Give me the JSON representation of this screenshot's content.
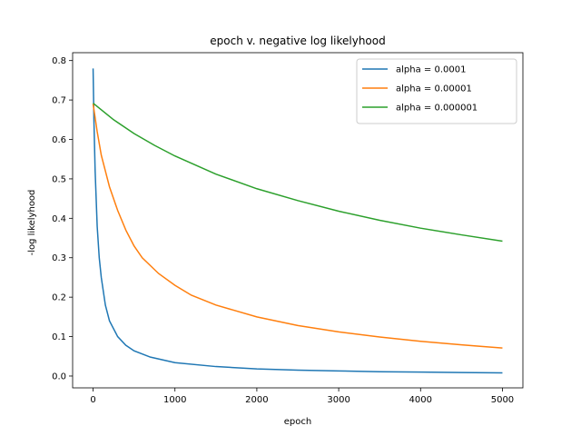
{
  "chart_data": {
    "type": "line",
    "title": "epoch v. negative log likelyhood",
    "xlabel": "epoch",
    "ylabel": "-log likelyhood",
    "xlim": [
      -250,
      5250
    ],
    "ylim": [
      -0.03,
      0.82
    ],
    "xticks": [
      0,
      1000,
      2000,
      3000,
      4000,
      5000
    ],
    "xtick_labels": [
      "0",
      "1000",
      "2000",
      "3000",
      "4000",
      "5000"
    ],
    "yticks": [
      0.0,
      0.1,
      0.2,
      0.3,
      0.4,
      0.5,
      0.6,
      0.7,
      0.8
    ],
    "ytick_labels": [
      "0.0",
      "0.1",
      "0.2",
      "0.3",
      "0.4",
      "0.5",
      "0.6",
      "0.7",
      "0.8"
    ],
    "grid": false,
    "legend_position": "top-right",
    "series": [
      {
        "name": "alpha = 0.0001",
        "color": "#1f77b4",
        "x": [
          0,
          10,
          25,
          50,
          75,
          100,
          150,
          200,
          300,
          400,
          500,
          700,
          1000,
          1500,
          2000,
          2500,
          3000,
          3500,
          4000,
          4500,
          5000
        ],
        "y": [
          0.78,
          0.65,
          0.52,
          0.38,
          0.3,
          0.25,
          0.18,
          0.14,
          0.1,
          0.078,
          0.064,
          0.048,
          0.034,
          0.024,
          0.018,
          0.015,
          0.013,
          0.011,
          0.01,
          0.009,
          0.008
        ]
      },
      {
        "name": "alpha = 0.00001",
        "color": "#ff7f0e",
        "x": [
          0,
          50,
          100,
          150,
          200,
          300,
          400,
          500,
          600,
          800,
          1000,
          1200,
          1500,
          2000,
          2500,
          3000,
          3500,
          4000,
          4500,
          5000
        ],
        "y": [
          0.69,
          0.62,
          0.56,
          0.52,
          0.48,
          0.42,
          0.37,
          0.33,
          0.3,
          0.26,
          0.23,
          0.205,
          0.18,
          0.15,
          0.128,
          0.112,
          0.099,
          0.088,
          0.079,
          0.071
        ]
      },
      {
        "name": "alpha = 0.000001",
        "color": "#2ca02c",
        "x": [
          0,
          250,
          500,
          750,
          1000,
          1500,
          2000,
          2500,
          3000,
          3500,
          4000,
          4500,
          5000
        ],
        "y": [
          0.692,
          0.65,
          0.615,
          0.585,
          0.558,
          0.512,
          0.475,
          0.445,
          0.418,
          0.395,
          0.375,
          0.358,
          0.342
        ]
      }
    ]
  }
}
